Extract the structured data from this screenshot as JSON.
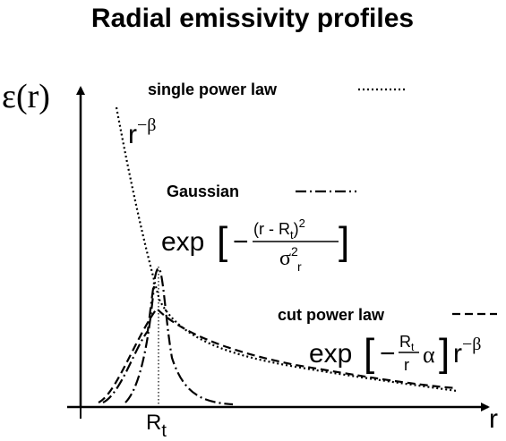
{
  "title": "Radial emissivity profiles",
  "axes": {
    "y_label": "ε(r)",
    "x_label": "r",
    "x_marker": {
      "base": "R",
      "sub": "t"
    }
  },
  "curves": [
    {
      "name": "single power law",
      "formula": {
        "base": "r",
        "sup": "−β"
      }
    },
    {
      "name": "Gaussian",
      "formula": {
        "prefix": "exp",
        "open": "[",
        "minus": "−",
        "numerator": "(r - R",
        "numerator_sub": "t",
        "numerator_close": ")",
        "numerator_sup": "2",
        "denominator": "σ",
        "denominator_sup": "2",
        "denominator_sub": "r",
        "close": "]"
      }
    },
    {
      "name": "cut power law",
      "formula": {
        "prefix": "exp",
        "open": "[",
        "minus": "−",
        "numerator": "R",
        "numerator_sub": "t",
        "denominator": "r",
        "factor": "α",
        "close": "]",
        "base": "r",
        "sup": "−β"
      }
    }
  ]
}
